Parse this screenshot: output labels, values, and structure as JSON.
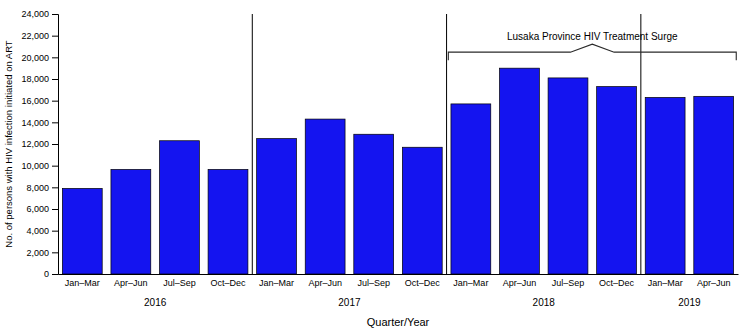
{
  "chart_data": {
    "type": "bar",
    "categories": [
      "Jan–Mar",
      "Apr–Jun",
      "Jul–Sep",
      "Oct–Dec",
      "Jan–Mar",
      "Apr–Jun",
      "Jul–Sep",
      "Oct–Dec",
      "Jan–Mar",
      "Apr–Jun",
      "Jul–Sep",
      "Oct–Dec",
      "Jan–Mar",
      "Apr–Jun"
    ],
    "values": [
      7900,
      9650,
      12300,
      9650,
      12500,
      14300,
      12900,
      11700,
      15700,
      19000,
      18100,
      17300,
      16300,
      16400
    ],
    "color": "#1414f0",
    "groups": [
      {
        "label": "2016",
        "size": 4
      },
      {
        "label": "2017",
        "size": 4
      },
      {
        "label": "2018",
        "size": 4
      },
      {
        "label": "2019",
        "size": 2
      }
    ],
    "x_label": "Quarter/Year",
    "y_label": "No. of persons with HIV infection initiated on ART",
    "ylim": [
      0,
      24000
    ],
    "yticks": [
      0,
      {
        "value": 2000,
        "label": "2,000"
      },
      {
        "value": 4000,
        "label": "4,000"
      },
      {
        "value": 6000,
        "label": "6,000"
      },
      {
        "value": 8000,
        "label": "8,000"
      },
      {
        "value": 10000,
        "label": "10,000"
      },
      {
        "value": 12000,
        "label": "12,000"
      },
      {
        "value": 14000,
        "label": "14,000"
      },
      {
        "value": 16000,
        "label": "16,000"
      },
      {
        "value": 18000,
        "label": "18,000"
      },
      {
        "value": 20000,
        "label": "20,000"
      },
      {
        "value": 22000,
        "label": "22,000"
      },
      {
        "value": 24000,
        "label": "24,000"
      }
    ],
    "annotations": [
      {
        "text": "Lusaka Province HIV Treatment Surge",
        "from": 8,
        "to": 13
      }
    ],
    "grid": false
  }
}
